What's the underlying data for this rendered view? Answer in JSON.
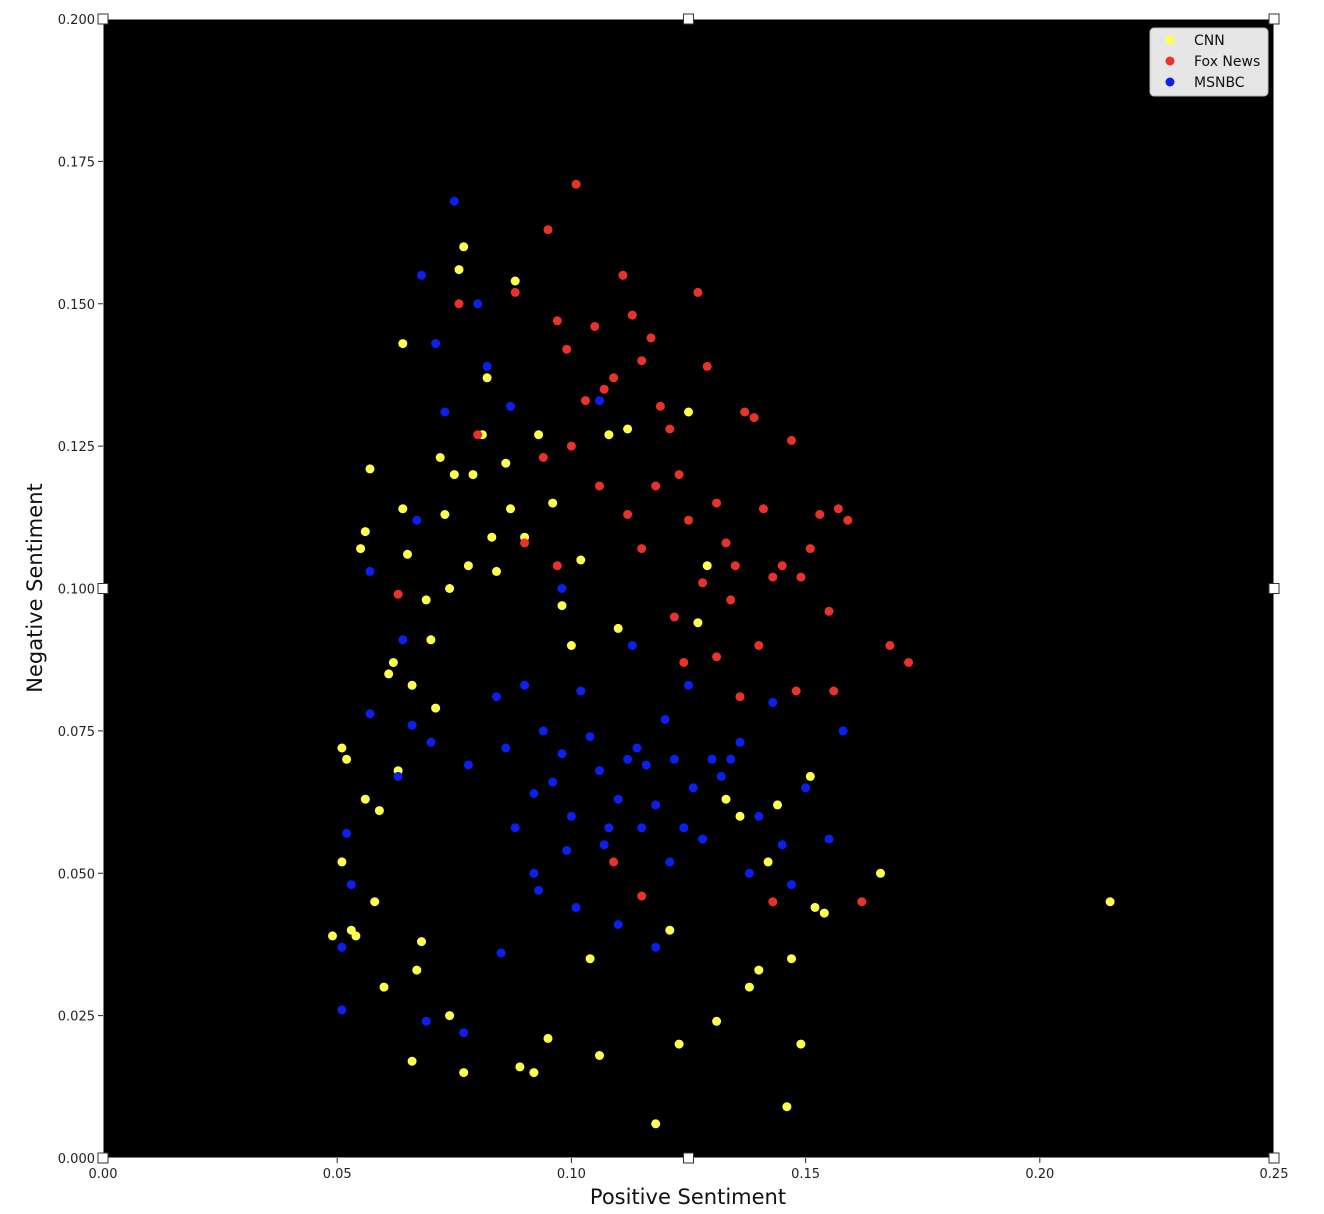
{
  "chart_data": {
    "type": "scatter",
    "title": "",
    "xlabel": "Positive Sentiment",
    "ylabel": "Negative Sentiment",
    "xlim": [
      0.0,
      0.25
    ],
    "ylim": [
      0.0,
      0.2
    ],
    "x_ticks": [
      "0.00",
      "0.05",
      "0.10",
      "0.15",
      "0.20",
      "0.25"
    ],
    "x_tick_values": [
      0.0,
      0.05,
      0.1,
      0.15,
      0.2,
      0.25
    ],
    "y_ticks": [
      "0.000",
      "0.025",
      "0.050",
      "0.075",
      "0.100",
      "0.125",
      "0.150",
      "0.175",
      "0.200"
    ],
    "y_tick_values": [
      0.0,
      0.025,
      0.05,
      0.075,
      0.1,
      0.125,
      0.15,
      0.175,
      0.2
    ],
    "background": "#000000",
    "grid": false,
    "legend_position": "top-right",
    "series": [
      {
        "name": "CNN",
        "color": "#ffff4d",
        "points": [
          [
            0.049,
            0.039
          ],
          [
            0.051,
            0.072
          ],
          [
            0.052,
            0.07
          ],
          [
            0.051,
            0.052
          ],
          [
            0.053,
            0.04
          ],
          [
            0.054,
            0.039
          ],
          [
            0.055,
            0.107
          ],
          [
            0.056,
            0.11
          ],
          [
            0.056,
            0.063
          ],
          [
            0.057,
            0.121
          ],
          [
            0.058,
            0.045
          ],
          [
            0.059,
            0.061
          ],
          [
            0.06,
            0.03
          ],
          [
            0.061,
            0.085
          ],
          [
            0.062,
            0.087
          ],
          [
            0.063,
            0.068
          ],
          [
            0.064,
            0.114
          ],
          [
            0.064,
            0.143
          ],
          [
            0.065,
            0.106
          ],
          [
            0.066,
            0.083
          ],
          [
            0.066,
            0.017
          ],
          [
            0.067,
            0.033
          ],
          [
            0.068,
            0.038
          ],
          [
            0.069,
            0.098
          ],
          [
            0.07,
            0.091
          ],
          [
            0.071,
            0.079
          ],
          [
            0.072,
            0.123
          ],
          [
            0.073,
            0.113
          ],
          [
            0.074,
            0.1
          ],
          [
            0.074,
            0.025
          ],
          [
            0.075,
            0.12
          ],
          [
            0.076,
            0.156
          ],
          [
            0.077,
            0.16
          ],
          [
            0.077,
            0.015
          ],
          [
            0.078,
            0.104
          ],
          [
            0.079,
            0.12
          ],
          [
            0.081,
            0.127
          ],
          [
            0.082,
            0.137
          ],
          [
            0.083,
            0.109
          ],
          [
            0.084,
            0.103
          ],
          [
            0.086,
            0.122
          ],
          [
            0.087,
            0.114
          ],
          [
            0.088,
            0.154
          ],
          [
            0.089,
            0.016
          ],
          [
            0.09,
            0.109
          ],
          [
            0.092,
            0.015
          ],
          [
            0.093,
            0.127
          ],
          [
            0.095,
            0.021
          ],
          [
            0.096,
            0.115
          ],
          [
            0.098,
            0.097
          ],
          [
            0.1,
            0.09
          ],
          [
            0.102,
            0.105
          ],
          [
            0.104,
            0.035
          ],
          [
            0.106,
            0.018
          ],
          [
            0.108,
            0.127
          ],
          [
            0.11,
            0.093
          ],
          [
            0.112,
            0.128
          ],
          [
            0.118,
            0.006
          ],
          [
            0.121,
            0.04
          ],
          [
            0.123,
            0.02
          ],
          [
            0.125,
            0.131
          ],
          [
            0.127,
            0.094
          ],
          [
            0.129,
            0.104
          ],
          [
            0.131,
            0.024
          ],
          [
            0.133,
            0.063
          ],
          [
            0.136,
            0.06
          ],
          [
            0.138,
            0.03
          ],
          [
            0.14,
            0.033
          ],
          [
            0.142,
            0.052
          ],
          [
            0.144,
            0.062
          ],
          [
            0.146,
            0.009
          ],
          [
            0.147,
            0.035
          ],
          [
            0.149,
            0.02
          ],
          [
            0.151,
            0.067
          ],
          [
            0.152,
            0.044
          ],
          [
            0.154,
            0.043
          ],
          [
            0.166,
            0.05
          ],
          [
            0.215,
            0.045
          ]
        ]
      },
      {
        "name": "Fox News",
        "color": "#e8322a",
        "points": [
          [
            0.063,
            0.099
          ],
          [
            0.076,
            0.15
          ],
          [
            0.08,
            0.127
          ],
          [
            0.088,
            0.152
          ],
          [
            0.095,
            0.163
          ],
          [
            0.097,
            0.147
          ],
          [
            0.099,
            0.142
          ],
          [
            0.101,
            0.171
          ],
          [
            0.103,
            0.133
          ],
          [
            0.105,
            0.146
          ],
          [
            0.107,
            0.135
          ],
          [
            0.109,
            0.137
          ],
          [
            0.111,
            0.155
          ],
          [
            0.113,
            0.148
          ],
          [
            0.115,
            0.14
          ],
          [
            0.117,
            0.144
          ],
          [
            0.119,
            0.132
          ],
          [
            0.121,
            0.128
          ],
          [
            0.123,
            0.12
          ],
          [
            0.125,
            0.112
          ],
          [
            0.127,
            0.152
          ],
          [
            0.129,
            0.139
          ],
          [
            0.131,
            0.115
          ],
          [
            0.133,
            0.108
          ],
          [
            0.135,
            0.104
          ],
          [
            0.137,
            0.131
          ],
          [
            0.139,
            0.13
          ],
          [
            0.141,
            0.114
          ],
          [
            0.143,
            0.102
          ],
          [
            0.145,
            0.104
          ],
          [
            0.147,
            0.126
          ],
          [
            0.149,
            0.102
          ],
          [
            0.151,
            0.107
          ],
          [
            0.153,
            0.113
          ],
          [
            0.155,
            0.096
          ],
          [
            0.157,
            0.114
          ],
          [
            0.159,
            0.112
          ],
          [
            0.162,
            0.045
          ],
          [
            0.168,
            0.09
          ],
          [
            0.172,
            0.087
          ],
          [
            0.134,
            0.098
          ],
          [
            0.128,
            0.101
          ],
          [
            0.118,
            0.118
          ],
          [
            0.112,
            0.113
          ],
          [
            0.106,
            0.118
          ],
          [
            0.1,
            0.125
          ],
          [
            0.094,
            0.123
          ],
          [
            0.09,
            0.108
          ],
          [
            0.097,
            0.104
          ],
          [
            0.115,
            0.107
          ],
          [
            0.122,
            0.095
          ],
          [
            0.131,
            0.088
          ],
          [
            0.14,
            0.09
          ],
          [
            0.148,
            0.082
          ],
          [
            0.156,
            0.082
          ],
          [
            0.124,
            0.087
          ],
          [
            0.136,
            0.081
          ],
          [
            0.109,
            0.052
          ],
          [
            0.115,
            0.046
          ],
          [
            0.143,
            0.045
          ]
        ]
      },
      {
        "name": "MSNBC",
        "color": "#0a1ff0",
        "points": [
          [
            0.051,
            0.026
          ],
          [
            0.051,
            0.037
          ],
          [
            0.052,
            0.057
          ],
          [
            0.053,
            0.048
          ],
          [
            0.057,
            0.103
          ],
          [
            0.057,
            0.078
          ],
          [
            0.063,
            0.067
          ],
          [
            0.064,
            0.091
          ],
          [
            0.066,
            0.076
          ],
          [
            0.067,
            0.112
          ],
          [
            0.068,
            0.155
          ],
          [
            0.069,
            0.024
          ],
          [
            0.07,
            0.073
          ],
          [
            0.071,
            0.143
          ],
          [
            0.073,
            0.131
          ],
          [
            0.075,
            0.168
          ],
          [
            0.077,
            0.022
          ],
          [
            0.078,
            0.069
          ],
          [
            0.08,
            0.15
          ],
          [
            0.082,
            0.139
          ],
          [
            0.084,
            0.081
          ],
          [
            0.086,
            0.072
          ],
          [
            0.087,
            0.132
          ],
          [
            0.088,
            0.058
          ],
          [
            0.09,
            0.083
          ],
          [
            0.092,
            0.064
          ],
          [
            0.094,
            0.075
          ],
          [
            0.096,
            0.066
          ],
          [
            0.098,
            0.071
          ],
          [
            0.1,
            0.06
          ],
          [
            0.102,
            0.082
          ],
          [
            0.104,
            0.074
          ],
          [
            0.106,
            0.068
          ],
          [
            0.108,
            0.058
          ],
          [
            0.11,
            0.063
          ],
          [
            0.112,
            0.07
          ],
          [
            0.114,
            0.072
          ],
          [
            0.116,
            0.069
          ],
          [
            0.118,
            0.062
          ],
          [
            0.12,
            0.077
          ],
          [
            0.122,
            0.07
          ],
          [
            0.124,
            0.058
          ],
          [
            0.126,
            0.065
          ],
          [
            0.128,
            0.056
          ],
          [
            0.13,
            0.07
          ],
          [
            0.132,
            0.067
          ],
          [
            0.134,
            0.07
          ],
          [
            0.136,
            0.073
          ],
          [
            0.138,
            0.05
          ],
          [
            0.14,
            0.06
          ],
          [
            0.143,
            0.08
          ],
          [
            0.145,
            0.055
          ],
          [
            0.147,
            0.048
          ],
          [
            0.15,
            0.065
          ],
          [
            0.155,
            0.056
          ],
          [
            0.158,
            0.075
          ],
          [
            0.106,
            0.133
          ],
          [
            0.098,
            0.1
          ],
          [
            0.113,
            0.09
          ],
          [
            0.125,
            0.083
          ],
          [
            0.093,
            0.047
          ],
          [
            0.101,
            0.044
          ],
          [
            0.11,
            0.041
          ],
          [
            0.118,
            0.037
          ],
          [
            0.085,
            0.036
          ],
          [
            0.092,
            0.05
          ],
          [
            0.099,
            0.054
          ],
          [
            0.107,
            0.055
          ],
          [
            0.115,
            0.058
          ],
          [
            0.121,
            0.052
          ]
        ]
      }
    ]
  }
}
